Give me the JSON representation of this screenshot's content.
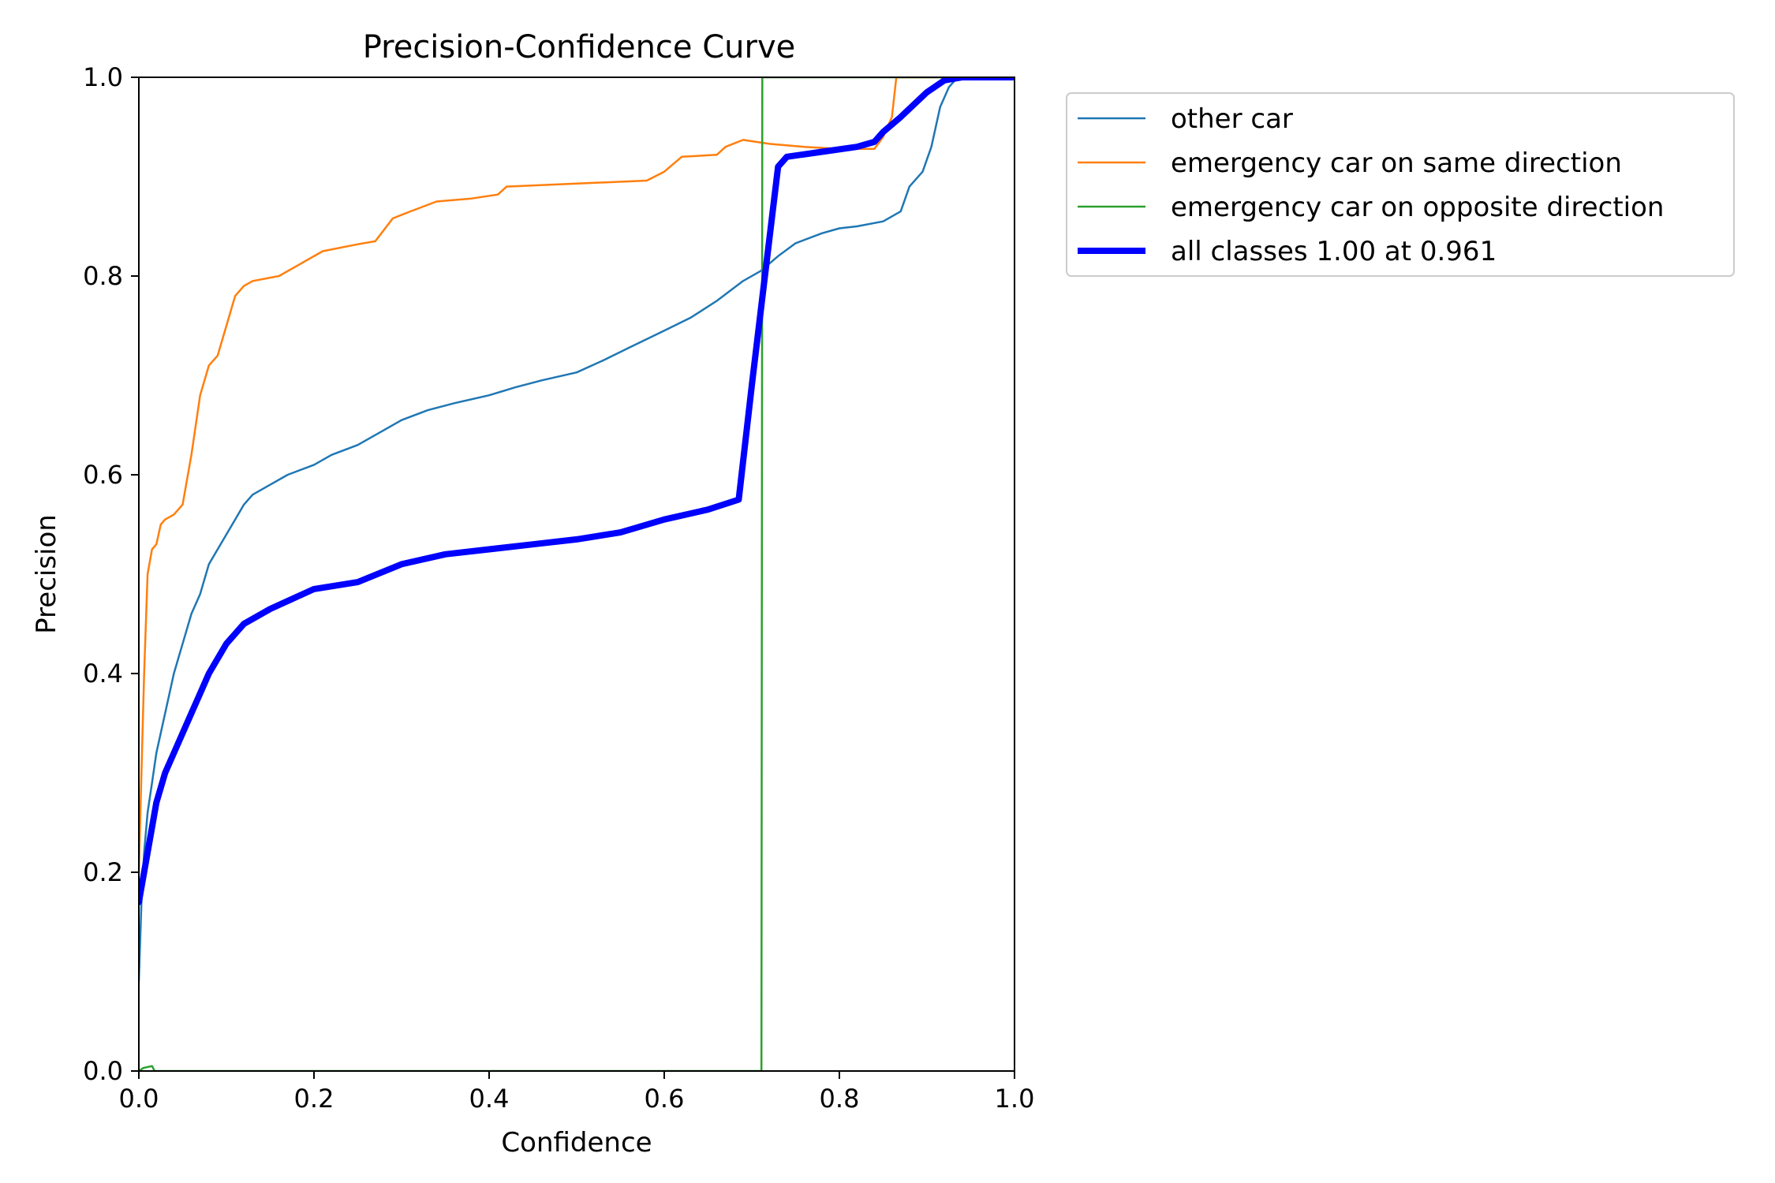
{
  "chart_data": {
    "type": "line",
    "title": "Precision-Confidence Curve",
    "xlabel": "Confidence",
    "ylabel": "Precision",
    "xlim": [
      0,
      1
    ],
    "ylim": [
      0,
      1
    ],
    "xticks": [
      "0.0",
      "0.2",
      "0.4",
      "0.6",
      "0.8",
      "1.0"
    ],
    "yticks": [
      "0.0",
      "0.2",
      "0.4",
      "0.6",
      "0.8",
      "1.0"
    ],
    "grid": false,
    "legend_position": "outside-right",
    "series": [
      {
        "name": "other car",
        "color": "#1f77b4",
        "width": "thin",
        "points": [
          [
            0.0,
            0.09
          ],
          [
            0.003,
            0.17
          ],
          [
            0.006,
            0.22
          ],
          [
            0.01,
            0.26
          ],
          [
            0.015,
            0.29
          ],
          [
            0.02,
            0.32
          ],
          [
            0.03,
            0.36
          ],
          [
            0.04,
            0.4
          ],
          [
            0.05,
            0.43
          ],
          [
            0.06,
            0.46
          ],
          [
            0.07,
            0.48
          ],
          [
            0.08,
            0.51
          ],
          [
            0.09,
            0.525
          ],
          [
            0.1,
            0.54
          ],
          [
            0.11,
            0.555
          ],
          [
            0.12,
            0.57
          ],
          [
            0.13,
            0.58
          ],
          [
            0.15,
            0.59
          ],
          [
            0.17,
            0.6
          ],
          [
            0.2,
            0.61
          ],
          [
            0.22,
            0.62
          ],
          [
            0.25,
            0.63
          ],
          [
            0.28,
            0.645
          ],
          [
            0.3,
            0.655
          ],
          [
            0.33,
            0.665
          ],
          [
            0.36,
            0.672
          ],
          [
            0.4,
            0.68
          ],
          [
            0.43,
            0.688
          ],
          [
            0.46,
            0.695
          ],
          [
            0.5,
            0.703
          ],
          [
            0.53,
            0.715
          ],
          [
            0.56,
            0.728
          ],
          [
            0.6,
            0.745
          ],
          [
            0.63,
            0.758
          ],
          [
            0.66,
            0.775
          ],
          [
            0.69,
            0.795
          ],
          [
            0.71,
            0.805
          ],
          [
            0.73,
            0.82
          ],
          [
            0.75,
            0.833
          ],
          [
            0.78,
            0.843
          ],
          [
            0.8,
            0.848
          ],
          [
            0.82,
            0.85
          ],
          [
            0.85,
            0.855
          ],
          [
            0.87,
            0.865
          ],
          [
            0.88,
            0.89
          ],
          [
            0.895,
            0.905
          ],
          [
            0.905,
            0.93
          ],
          [
            0.915,
            0.97
          ],
          [
            0.925,
            0.99
          ],
          [
            0.935,
            1.0
          ],
          [
            1.0,
            1.0
          ]
        ]
      },
      {
        "name": "emergency car on same direction",
        "color": "#ff7f0e",
        "width": "thin",
        "points": [
          [
            0.0,
            0.2
          ],
          [
            0.003,
            0.3
          ],
          [
            0.006,
            0.4
          ],
          [
            0.01,
            0.5
          ],
          [
            0.015,
            0.525
          ],
          [
            0.02,
            0.53
          ],
          [
            0.025,
            0.55
          ],
          [
            0.03,
            0.555
          ],
          [
            0.04,
            0.56
          ],
          [
            0.05,
            0.57
          ],
          [
            0.06,
            0.62
          ],
          [
            0.07,
            0.68
          ],
          [
            0.08,
            0.71
          ],
          [
            0.09,
            0.72
          ],
          [
            0.1,
            0.75
          ],
          [
            0.11,
            0.78
          ],
          [
            0.12,
            0.79
          ],
          [
            0.13,
            0.795
          ],
          [
            0.16,
            0.8
          ],
          [
            0.18,
            0.81
          ],
          [
            0.19,
            0.815
          ],
          [
            0.21,
            0.825
          ],
          [
            0.25,
            0.832
          ],
          [
            0.27,
            0.835
          ],
          [
            0.29,
            0.858
          ],
          [
            0.31,
            0.865
          ],
          [
            0.34,
            0.875
          ],
          [
            0.38,
            0.878
          ],
          [
            0.41,
            0.882
          ],
          [
            0.42,
            0.89
          ],
          [
            0.5,
            0.893
          ],
          [
            0.58,
            0.896
          ],
          [
            0.6,
            0.905
          ],
          [
            0.62,
            0.92
          ],
          [
            0.66,
            0.922
          ],
          [
            0.67,
            0.93
          ],
          [
            0.69,
            0.937
          ],
          [
            0.72,
            0.933
          ],
          [
            0.76,
            0.93
          ],
          [
            0.8,
            0.928
          ],
          [
            0.84,
            0.928
          ],
          [
            0.85,
            0.94
          ],
          [
            0.86,
            0.96
          ],
          [
            0.865,
            1.0
          ],
          [
            0.87,
            1.0
          ],
          [
            1.0,
            1.0
          ]
        ]
      },
      {
        "name": "emergency car on opposite direction",
        "color": "#2ca02c",
        "width": "thin",
        "points": [
          [
            0.0,
            0.0
          ],
          [
            0.005,
            0.003
          ],
          [
            0.015,
            0.005
          ],
          [
            0.018,
            0.0
          ],
          [
            0.711,
            0.0
          ],
          [
            0.712,
            1.0
          ],
          [
            1.0,
            1.0
          ]
        ]
      },
      {
        "name": "all classes 1.00 at 0.961",
        "color": "#0000ff",
        "width": "thick",
        "points": [
          [
            0.0,
            0.17
          ],
          [
            0.01,
            0.22
          ],
          [
            0.02,
            0.27
          ],
          [
            0.03,
            0.3
          ],
          [
            0.04,
            0.32
          ],
          [
            0.06,
            0.36
          ],
          [
            0.08,
            0.4
          ],
          [
            0.1,
            0.43
          ],
          [
            0.12,
            0.45
          ],
          [
            0.15,
            0.465
          ],
          [
            0.2,
            0.485
          ],
          [
            0.25,
            0.492
          ],
          [
            0.3,
            0.51
          ],
          [
            0.35,
            0.52
          ],
          [
            0.4,
            0.525
          ],
          [
            0.45,
            0.53
          ],
          [
            0.5,
            0.535
          ],
          [
            0.55,
            0.542
          ],
          [
            0.6,
            0.555
          ],
          [
            0.65,
            0.565
          ],
          [
            0.685,
            0.575
          ],
          [
            0.7,
            0.69
          ],
          [
            0.715,
            0.8
          ],
          [
            0.73,
            0.91
          ],
          [
            0.74,
            0.92
          ],
          [
            0.78,
            0.925
          ],
          [
            0.82,
            0.93
          ],
          [
            0.84,
            0.935
          ],
          [
            0.85,
            0.945
          ],
          [
            0.87,
            0.96
          ],
          [
            0.9,
            0.985
          ],
          [
            0.92,
            0.997
          ],
          [
            0.94,
            1.0
          ],
          [
            1.0,
            1.0
          ]
        ]
      }
    ]
  }
}
